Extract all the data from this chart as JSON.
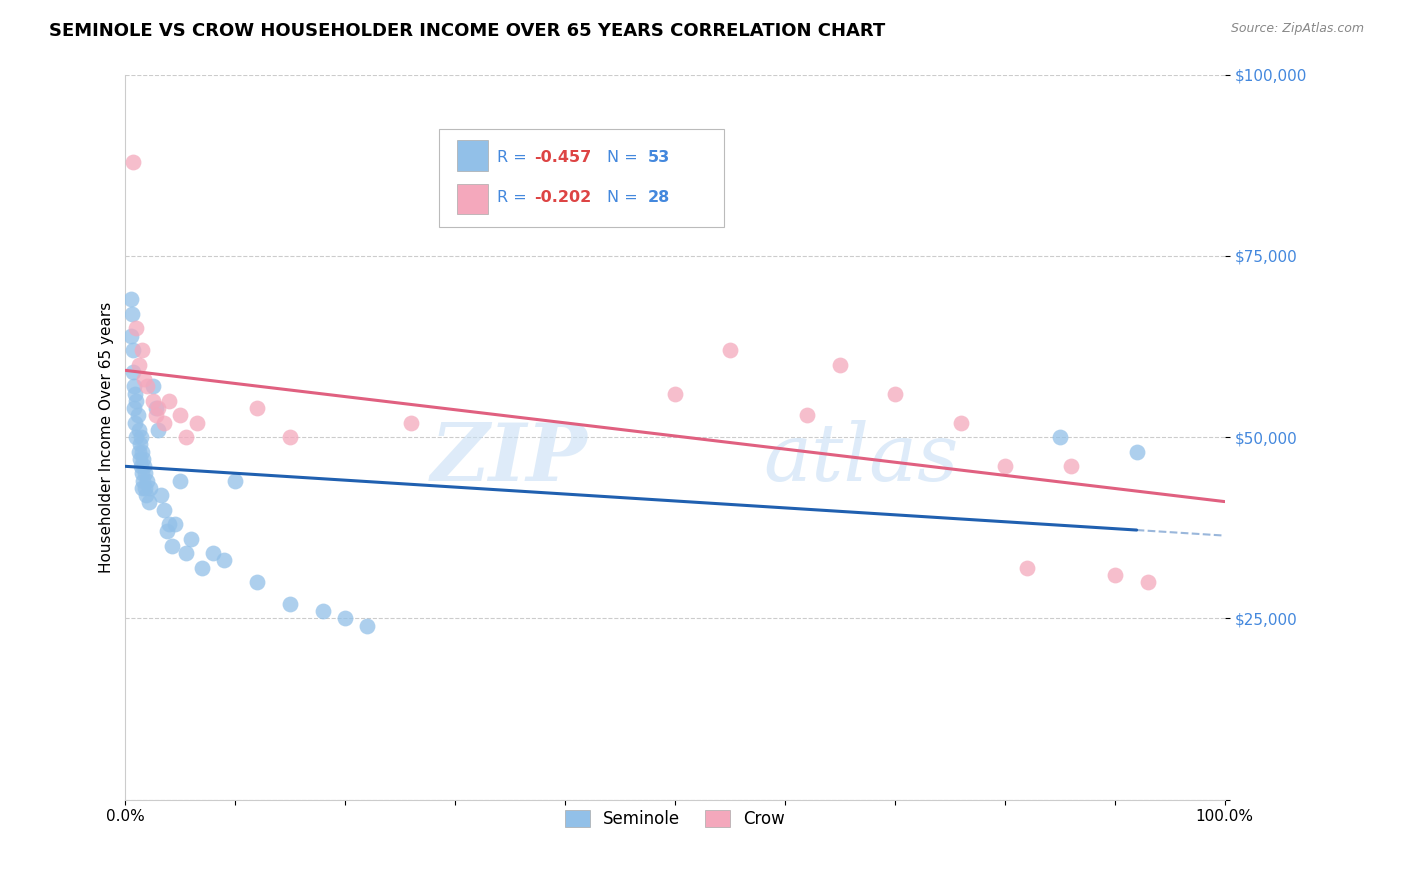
{
  "title": "SEMINOLE VS CROW HOUSEHOLDER INCOME OVER 65 YEARS CORRELATION CHART",
  "source": "Source: ZipAtlas.com",
  "ylabel": "Householder Income Over 65 years",
  "xmin": 0.0,
  "xmax": 1.0,
  "ymin": 0,
  "ymax": 100000,
  "yticks": [
    0,
    25000,
    50000,
    75000,
    100000
  ],
  "ytick_labels": [
    "",
    "$25,000",
    "$50,000",
    "$75,000",
    "$100,000"
  ],
  "xticks": [
    0.0,
    0.1,
    0.2,
    0.3,
    0.4,
    0.5,
    0.6,
    0.7,
    0.8,
    0.9,
    1.0
  ],
  "watermark_zip": "ZIP",
  "watermark_atlas": "atlas",
  "seminole_color": "#92c0e8",
  "crow_color": "#f4a8bc",
  "seminole_line_color": "#2060b0",
  "crow_line_color": "#e06080",
  "legend_R1": "R = ",
  "legend_V1": "-0.457",
  "legend_N1_label": "N = ",
  "legend_N1": "53",
  "legend_R2": "R = ",
  "legend_V2": "-0.202",
  "legend_N2_label": "N = ",
  "legend_N2": "28",
  "blue_text_color": "#4488dd",
  "red_text_color": "#dd4444",
  "seminole_x": [
    0.005,
    0.005,
    0.006,
    0.007,
    0.007,
    0.008,
    0.008,
    0.009,
    0.009,
    0.01,
    0.01,
    0.011,
    0.012,
    0.012,
    0.013,
    0.013,
    0.014,
    0.014,
    0.015,
    0.015,
    0.015,
    0.016,
    0.016,
    0.017,
    0.018,
    0.018,
    0.019,
    0.02,
    0.021,
    0.022,
    0.025,
    0.028,
    0.03,
    0.032,
    0.035,
    0.038,
    0.04,
    0.042,
    0.045,
    0.05,
    0.055,
    0.06,
    0.07,
    0.08,
    0.09,
    0.1,
    0.12,
    0.15,
    0.18,
    0.2,
    0.22,
    0.85,
    0.92
  ],
  "seminole_y": [
    69000,
    64000,
    67000,
    62000,
    59000,
    57000,
    54000,
    56000,
    52000,
    55000,
    50000,
    53000,
    51000,
    48000,
    49000,
    47000,
    50000,
    46000,
    48000,
    45000,
    43000,
    47000,
    44000,
    46000,
    43000,
    45000,
    42000,
    44000,
    41000,
    43000,
    57000,
    54000,
    51000,
    42000,
    40000,
    37000,
    38000,
    35000,
    38000,
    44000,
    34000,
    36000,
    32000,
    34000,
    33000,
    44000,
    30000,
    27000,
    26000,
    25000,
    24000,
    50000,
    48000
  ],
  "crow_x": [
    0.007,
    0.01,
    0.012,
    0.015,
    0.017,
    0.02,
    0.025,
    0.028,
    0.03,
    0.035,
    0.04,
    0.05,
    0.055,
    0.065,
    0.12,
    0.15,
    0.26,
    0.5,
    0.55,
    0.62,
    0.65,
    0.7,
    0.76,
    0.8,
    0.82,
    0.86,
    0.9,
    0.93
  ],
  "crow_y": [
    88000,
    65000,
    60000,
    62000,
    58000,
    57000,
    55000,
    53000,
    54000,
    52000,
    55000,
    53000,
    50000,
    52000,
    54000,
    50000,
    52000,
    56000,
    62000,
    53000,
    60000,
    56000,
    52000,
    46000,
    32000,
    46000,
    31000,
    30000
  ]
}
